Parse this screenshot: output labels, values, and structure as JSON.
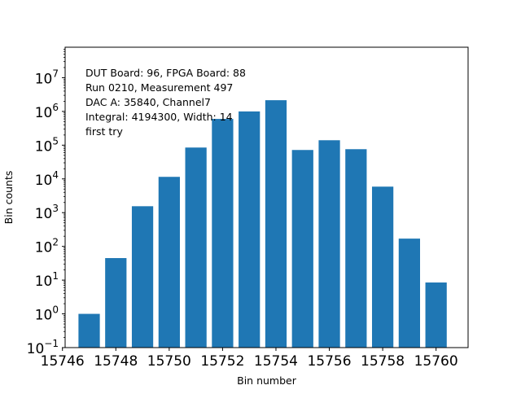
{
  "chart_data": {
    "type": "bar",
    "xlabel": "Bin number",
    "ylabel": "Bin counts",
    "yscale": "log",
    "xlim": [
      15746.1,
      15761.2
    ],
    "ylim": [
      0.1,
      80000000
    ],
    "x_ticks": [
      15746,
      15748,
      15750,
      15752,
      15754,
      15756,
      15758,
      15760
    ],
    "y_ticks": [
      {
        "value": 0.1,
        "base": "10",
        "exp": "−1"
      },
      {
        "value": 1,
        "base": "10",
        "exp": "0"
      },
      {
        "value": 10,
        "base": "10",
        "exp": "1"
      },
      {
        "value": 100,
        "base": "10",
        "exp": "2"
      },
      {
        "value": 1000,
        "base": "10",
        "exp": "3"
      },
      {
        "value": 10000,
        "base": "10",
        "exp": "4"
      },
      {
        "value": 100000,
        "base": "10",
        "exp": "5"
      },
      {
        "value": 1000000,
        "base": "10",
        "exp": "6"
      },
      {
        "value": 10000000,
        "base": "10",
        "exp": "7"
      }
    ],
    "bar_color": "#1f77b4",
    "bar_width": 0.8,
    "x": [
      15747,
      15748,
      15749,
      15750,
      15751,
      15752,
      15753,
      15754,
      15755,
      15756,
      15757,
      15758,
      15759,
      15760
    ],
    "values": [
      1,
      45,
      1550,
      11500,
      85000,
      600000,
      1000000,
      2150000,
      72000,
      140000,
      76000,
      5900,
      170,
      8.5
    ],
    "annotation": [
      "DUT Board: 96, FPGA Board: 88",
      "Run 0210, Measurement 497",
      "DAC A: 35840, Channel7",
      "Integral: 4194300, Width: 14",
      "first try"
    ]
  }
}
